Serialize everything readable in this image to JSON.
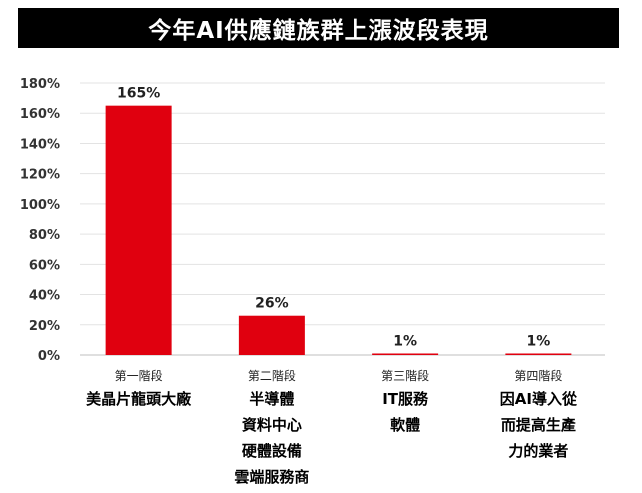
{
  "chart_data": {
    "type": "bar",
    "title": "今年AI供應鏈族群上漲波段表現",
    "xlabel": "",
    "ylabel": "",
    "ylim": [
      0,
      180
    ],
    "yticks": [
      "0%",
      "20%",
      "40%",
      "60%",
      "80%",
      "100%",
      "120%",
      "140%",
      "160%",
      "180%"
    ],
    "grid": true,
    "categories": [
      "第一階段",
      "第二階段",
      "第三階段",
      "第四階段"
    ],
    "values": [
      165,
      26,
      1,
      1
    ],
    "data_labels": [
      "165%",
      "26%",
      "1%",
      "1%"
    ],
    "descriptions": [
      [
        "美晶片龍頭大廠"
      ],
      [
        "半導體",
        "資料中心",
        "硬體設備",
        "雲端服務商"
      ],
      [
        "IT服務",
        "軟體"
      ],
      [
        "因AI導入從",
        "而提高生產",
        "力的業者"
      ]
    ],
    "bar_color": "#e0000f"
  }
}
